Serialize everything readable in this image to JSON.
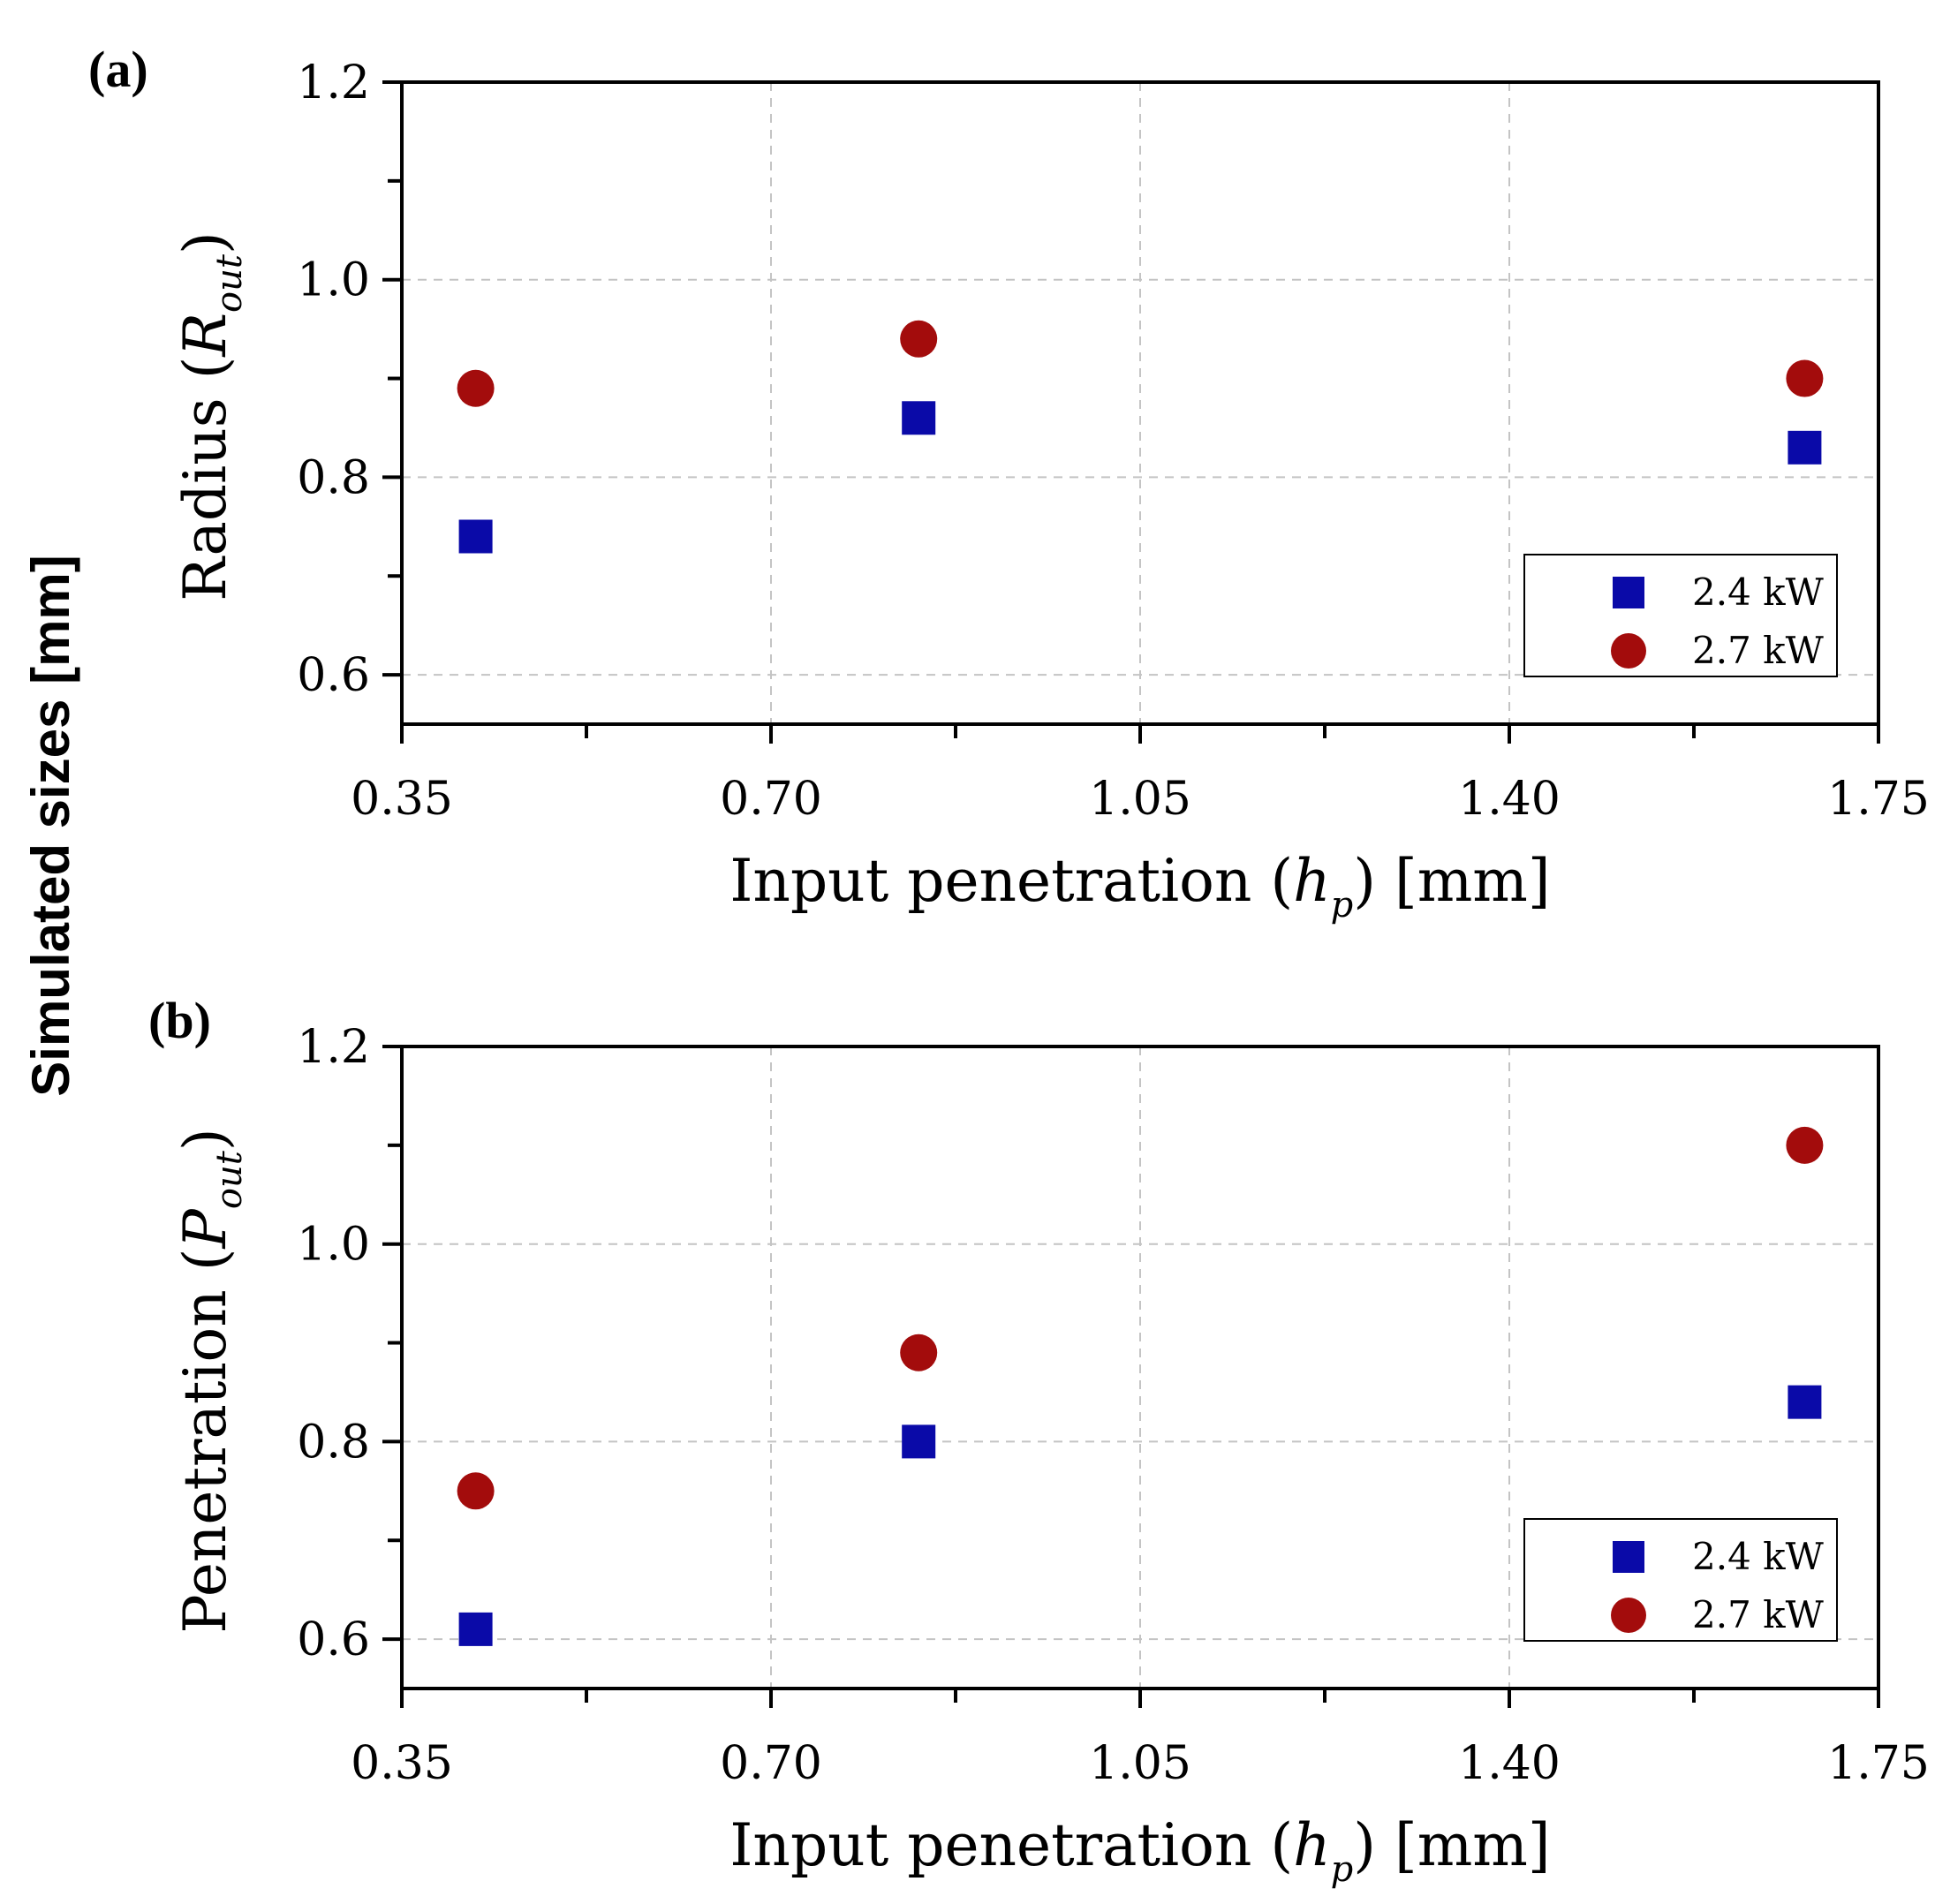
{
  "figure": {
    "shared_ylabel": "Simulated sizes [mm]"
  },
  "chart_data": [
    {
      "type": "scatter",
      "panel_label": "(a)",
      "xlabel": "Input penetration (h_p) [mm]",
      "xlabel_parts": {
        "pre": "Input penetration (",
        "var": "h",
        "sub": "p",
        "post": ") [mm]"
      },
      "ylabel": "Radius (R_out)",
      "ylabel_parts": {
        "pre": "Radius (",
        "var": "R",
        "sub": "out",
        "post": ")"
      },
      "xlim": [
        0.35,
        1.75
      ],
      "ylim": [
        0.55,
        1.2
      ],
      "x_ticks": [
        0.35,
        0.7,
        1.05,
        1.4,
        1.75
      ],
      "x_tick_labels": [
        "0.35",
        "0.70",
        "1.05",
        "1.40",
        "1.75"
      ],
      "y_ticks": [
        0.6,
        0.8,
        1.0,
        1.2
      ],
      "y_tick_labels": [
        "0.6",
        "0.8",
        "1.0",
        "1.2"
      ],
      "grid": true,
      "legend_position": "bottom-right",
      "series": [
        {
          "name": "2.4 kW",
          "marker": "square",
          "color": "#0a0aa8",
          "x": [
            0.42,
            0.84,
            1.68
          ],
          "y": [
            0.74,
            0.86,
            0.83
          ]
        },
        {
          "name": "2.7 kW",
          "marker": "circle",
          "color": "#a30c0c",
          "x": [
            0.42,
            0.84,
            1.68
          ],
          "y": [
            0.89,
            0.94,
            0.9
          ]
        }
      ]
    },
    {
      "type": "scatter",
      "panel_label": "(b)",
      "xlabel": "Input penetration (h_p) [mm]",
      "xlabel_parts": {
        "pre": "Input penetration (",
        "var": "h",
        "sub": "p",
        "post": ") [mm]"
      },
      "ylabel": "Penetration (P_out)",
      "ylabel_parts": {
        "pre": "Penetration (",
        "var": "P",
        "sub": "out",
        "post": ")"
      },
      "xlim": [
        0.35,
        1.75
      ],
      "ylim": [
        0.55,
        1.2
      ],
      "x_ticks": [
        0.35,
        0.7,
        1.05,
        1.4,
        1.75
      ],
      "x_tick_labels": [
        "0.35",
        "0.70",
        "1.05",
        "1.40",
        "1.75"
      ],
      "y_ticks": [
        0.6,
        0.8,
        1.0,
        1.2
      ],
      "y_tick_labels": [
        "0.6",
        "0.8",
        "1.0",
        "1.2"
      ],
      "grid": true,
      "legend_position": "bottom-right",
      "series": [
        {
          "name": "2.4 kW",
          "marker": "square",
          "color": "#0a0aa8",
          "x": [
            0.42,
            0.84,
            1.68
          ],
          "y": [
            0.61,
            0.8,
            0.84
          ]
        },
        {
          "name": "2.7 kW",
          "marker": "circle",
          "color": "#a30c0c",
          "x": [
            0.42,
            0.84,
            1.68
          ],
          "y": [
            0.75,
            0.89,
            1.1
          ]
        }
      ]
    }
  ]
}
